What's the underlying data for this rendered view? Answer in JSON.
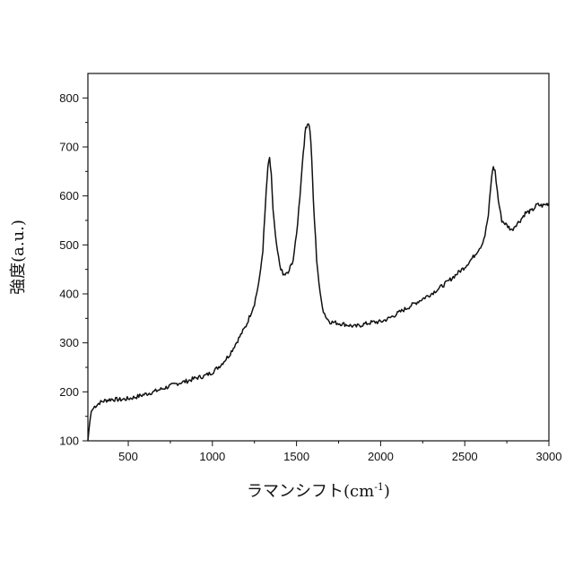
{
  "chart_data": {
    "type": "line",
    "title": "",
    "xlabel": "ラマンシフト(cm-1)",
    "xlabel_base": "ラマンシフト(cm",
    "xlabel_sup": "-1",
    "xlabel_close": ")",
    "ylabel": "強度(a.u.)",
    "xlim": [
      260,
      3000
    ],
    "ylim": [
      100,
      850
    ],
    "x_ticks": [
      500,
      1000,
      1500,
      2000,
      2500,
      3000
    ],
    "y_ticks": [
      100,
      200,
      300,
      400,
      500,
      600,
      700,
      800
    ],
    "grid": false,
    "legend": "none",
    "line_color": "#111111",
    "series": [
      {
        "x": [
          260,
          270,
          280,
          300,
          330,
          360,
          400,
          450,
          500,
          550,
          600,
          650,
          700,
          750,
          800,
          850,
          900,
          950,
          1000,
          1050,
          1100,
          1150,
          1200,
          1250,
          1280,
          1300,
          1315,
          1330,
          1340,
          1350,
          1360,
          1380,
          1400,
          1420,
          1450,
          1480,
          1500,
          1520,
          1540,
          1555,
          1570,
          1580,
          1590,
          1600,
          1620,
          1640,
          1660,
          1680,
          1700,
          1750,
          1800,
          1850,
          1900,
          1950,
          2000,
          2050,
          2100,
          2150,
          2200,
          2250,
          2300,
          2350,
          2400,
          2450,
          2500,
          2550,
          2600,
          2620,
          2640,
          2660,
          2670,
          2680,
          2700,
          2720,
          2750,
          2780,
          2800,
          2830,
          2860,
          2900,
          2930,
          2960,
          3000
        ],
        "values": [
          100,
          135,
          160,
          170,
          178,
          182,
          185,
          184,
          186,
          190,
          195,
          200,
          206,
          212,
          218,
          222,
          228,
          232,
          240,
          255,
          275,
          305,
          335,
          380,
          430,
          490,
          580,
          660,
          675,
          645,
          570,
          500,
          460,
          438,
          442,
          470,
          520,
          600,
          690,
          740,
          750,
          735,
          680,
          590,
          470,
          400,
          365,
          350,
          343,
          340,
          337,
          333,
          338,
          342,
          343,
          350,
          360,
          370,
          380,
          390,
          400,
          412,
          425,
          440,
          455,
          475,
          500,
          520,
          560,
          640,
          660,
          650,
          590,
          550,
          540,
          530,
          540,
          550,
          565,
          570,
          582,
          580,
          585
        ]
      }
    ]
  }
}
